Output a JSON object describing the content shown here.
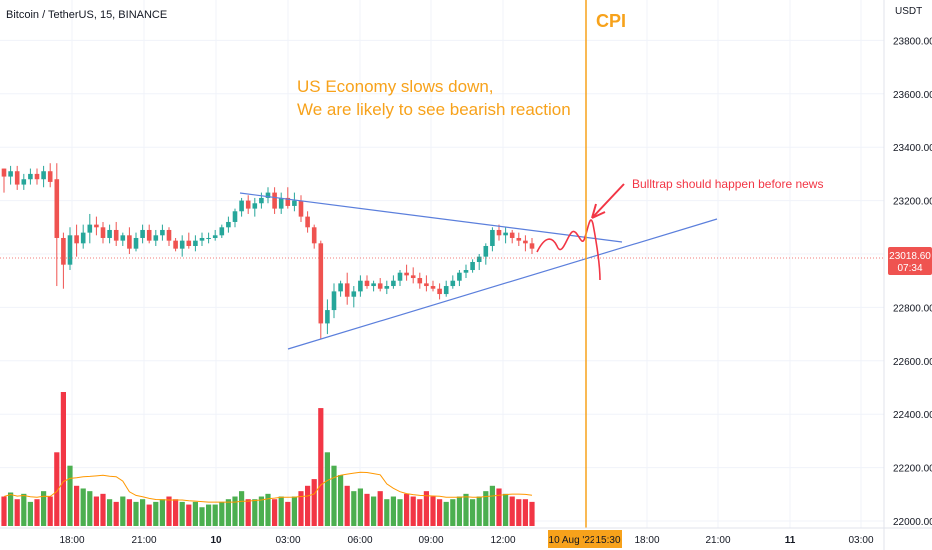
{
  "symbol_title": "Bitcoin / TetherUS, 15, BINANCE",
  "colors": {
    "up": "#26a69a",
    "up_volume": "#4caf50",
    "down": "#ef5350",
    "down_volume": "#f23645",
    "trendline": "#5b7fdc",
    "annotation_orange": "#f7a21b",
    "annotation_red": "#f23645",
    "volume_ma": "#ff9800",
    "grid": "#f0f3fa"
  },
  "annotations": {
    "main_line1": "US Economy slows down,",
    "main_line2": "We are likely to see bearish reaction",
    "bulltrap": "Bulltrap should happen before news",
    "cpi": "CPI"
  },
  "price_badge": {
    "price": "23018.60",
    "countdown": "07:34"
  },
  "chart_data": {
    "type": "candlestick",
    "title": "Bitcoin / TetherUS, 15, BINANCE",
    "y_unit": "USDT",
    "ylim": [
      22000,
      24000
    ],
    "y_ticks": [
      "23800.00",
      "23600.00",
      "23400.00",
      "23200.00",
      "23000.00",
      "22800.00",
      "22600.00",
      "22400.00",
      "22200.00",
      "22000.00"
    ],
    "x_ticks": [
      "18:00",
      "21:00",
      "10",
      "03:00",
      "06:00",
      "09:00",
      "12:00",
      "10 Aug '22",
      "15:30",
      "18:00",
      "21:00",
      "11",
      "03:00"
    ],
    "last_price": 23018.6,
    "candles": [
      [
        23320,
        23320,
        23230,
        23290
      ],
      [
        23290,
        23330,
        23260,
        23310
      ],
      [
        23310,
        23330,
        23240,
        23260
      ],
      [
        23260,
        23300,
        23240,
        23280
      ],
      [
        23280,
        23320,
        23260,
        23300
      ],
      [
        23300,
        23320,
        23260,
        23280
      ],
      [
        23280,
        23330,
        23250,
        23310
      ],
      [
        23310,
        23340,
        23250,
        23270
      ],
      [
        23280,
        23340,
        22880,
        23060
      ],
      [
        23060,
        23080,
        22870,
        22960
      ],
      [
        22960,
        23100,
        22940,
        23070
      ],
      [
        23070,
        23110,
        22990,
        23040
      ],
      [
        23040,
        23110,
        23020,
        23080
      ],
      [
        23080,
        23150,
        23040,
        23110
      ],
      [
        23110,
        23140,
        23070,
        23100
      ],
      [
        23100,
        23120,
        23040,
        23060
      ],
      [
        23060,
        23110,
        23040,
        23090
      ],
      [
        23090,
        23120,
        23030,
        23050
      ],
      [
        23050,
        23080,
        23030,
        23070
      ],
      [
        23070,
        23100,
        23000,
        23020
      ],
      [
        23020,
        23080,
        23010,
        23060
      ],
      [
        23060,
        23110,
        23040,
        23090
      ],
      [
        23090,
        23110,
        23040,
        23050
      ],
      [
        23050,
        23090,
        23030,
        23070
      ],
      [
        23070,
        23110,
        23050,
        23090
      ],
      [
        23090,
        23100,
        23030,
        23050
      ],
      [
        23050,
        23060,
        23010,
        23020
      ],
      [
        23020,
        23070,
        22990,
        23050
      ],
      [
        23050,
        23080,
        23020,
        23030
      ],
      [
        23030,
        23070,
        23010,
        23050
      ],
      [
        23050,
        23080,
        23030,
        23060
      ],
      [
        23060,
        23080,
        23040,
        23060
      ],
      [
        23060,
        23090,
        23050,
        23070
      ],
      [
        23070,
        23110,
        23060,
        23100
      ],
      [
        23100,
        23140,
        23080,
        23120
      ],
      [
        23120,
        23170,
        23100,
        23160
      ],
      [
        23160,
        23210,
        23140,
        23200
      ],
      [
        23200,
        23220,
        23150,
        23170
      ],
      [
        23170,
        23210,
        23140,
        23190
      ],
      [
        23190,
        23230,
        23170,
        23210
      ],
      [
        23210,
        23250,
        23190,
        23230
      ],
      [
        23230,
        23250,
        23150,
        23170
      ],
      [
        23170,
        23230,
        23150,
        23210
      ],
      [
        23210,
        23250,
        23170,
        23180
      ],
      [
        23180,
        23230,
        23160,
        23200
      ],
      [
        23200,
        23220,
        23120,
        23140
      ],
      [
        23140,
        23160,
        23080,
        23100
      ],
      [
        23100,
        23110,
        23020,
        23040
      ],
      [
        23040,
        23050,
        22680,
        22740
      ],
      [
        22740,
        22830,
        22700,
        22790
      ],
      [
        22790,
        22890,
        22760,
        22860
      ],
      [
        22860,
        22900,
        22840,
        22890
      ],
      [
        22890,
        22930,
        22810,
        22840
      ],
      [
        22840,
        22880,
        22800,
        22860
      ],
      [
        22860,
        22920,
        22840,
        22900
      ],
      [
        22900,
        22920,
        22870,
        22880
      ],
      [
        22880,
        22900,
        22860,
        22890
      ],
      [
        22890,
        22910,
        22860,
        22870
      ],
      [
        22870,
        22900,
        22850,
        22880
      ],
      [
        22880,
        22920,
        22870,
        22900
      ],
      [
        22900,
        22940,
        22880,
        22930
      ],
      [
        22930,
        22960,
        22900,
        22920
      ],
      [
        22920,
        22950,
        22890,
        22910
      ],
      [
        22910,
        22930,
        22870,
        22890
      ],
      [
        22890,
        22920,
        22860,
        22880
      ],
      [
        22880,
        22900,
        22860,
        22870
      ],
      [
        22870,
        22890,
        22830,
        22850
      ],
      [
        22850,
        22900,
        22840,
        22880
      ],
      [
        22880,
        22920,
        22870,
        22900
      ],
      [
        22900,
        22940,
        22880,
        22930
      ],
      [
        22930,
        22960,
        22910,
        22940
      ],
      [
        22940,
        22980,
        22930,
        22970
      ],
      [
        22970,
        23000,
        22940,
        22990
      ],
      [
        22990,
        23040,
        22960,
        23030
      ],
      [
        23030,
        23100,
        23010,
        23090
      ],
      [
        23090,
        23110,
        23050,
        23070
      ],
      [
        23070,
        23100,
        23040,
        23080
      ],
      [
        23080,
        23090,
        23040,
        23060
      ],
      [
        23060,
        23080,
        23030,
        23050
      ],
      [
        23050,
        23070,
        23010,
        23040
      ],
      [
        23040,
        23060,
        23000,
        23020
      ]
    ],
    "volume": [
      0.22,
      0.25,
      0.2,
      0.24,
      0.18,
      0.2,
      0.26,
      0.22,
      0.55,
      1.0,
      0.45,
      0.3,
      0.28,
      0.26,
      0.22,
      0.24,
      0.2,
      0.18,
      0.22,
      0.2,
      0.18,
      0.2,
      0.16,
      0.18,
      0.2,
      0.22,
      0.2,
      0.18,
      0.16,
      0.18,
      0.14,
      0.16,
      0.16,
      0.18,
      0.2,
      0.22,
      0.26,
      0.2,
      0.2,
      0.22,
      0.24,
      0.2,
      0.22,
      0.18,
      0.22,
      0.26,
      0.3,
      0.35,
      0.88,
      0.55,
      0.45,
      0.38,
      0.3,
      0.26,
      0.28,
      0.24,
      0.22,
      0.26,
      0.2,
      0.22,
      0.2,
      0.24,
      0.22,
      0.2,
      0.26,
      0.22,
      0.2,
      0.18,
      0.2,
      0.22,
      0.24,
      0.2,
      0.22,
      0.26,
      0.3,
      0.28,
      0.24,
      0.22,
      0.2,
      0.2,
      0.18
    ]
  }
}
